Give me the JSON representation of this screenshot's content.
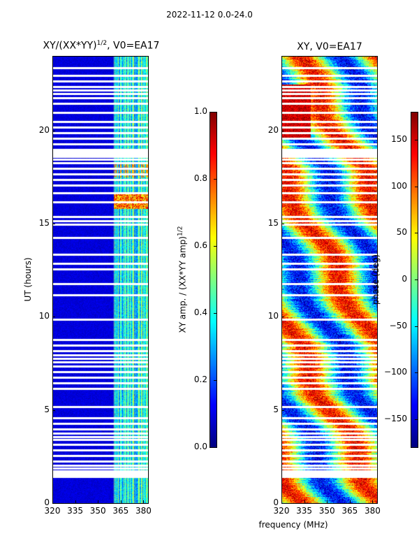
{
  "suptitle": "2022-11-12 0.0-24.0",
  "chart_data": [
    {
      "type": "heatmap",
      "title": "XY/(XX*YY)",
      "title_sup": "1/2",
      "title_suffix": ", V0=EA17",
      "xlabel": "",
      "ylabel": "UT (hours)",
      "xlim": [
        320,
        383
      ],
      "ylim": [
        0,
        24
      ],
      "xticks": [
        320,
        335,
        350,
        365,
        380
      ],
      "yticks": [
        0,
        5,
        10,
        15,
        20
      ],
      "colorbar": {
        "label": "XY amp. / (XX*YY amp)",
        "label_sup": "1/2",
        "range": [
          0.0,
          1.0
        ],
        "ticks": [
          "0.0",
          "0.2",
          "0.4",
          "0.6",
          "0.8",
          "1.0"
        ],
        "colormap": "jet"
      }
    },
    {
      "type": "heatmap",
      "title": "XY, V0=EA17",
      "xlabel": "frequency (MHz)",
      "ylabel": "",
      "xlim": [
        320,
        383
      ],
      "ylim": [
        0,
        24
      ],
      "xticks": [
        320,
        335,
        350,
        365,
        380
      ],
      "yticks": [
        0,
        5,
        10,
        15,
        20
      ],
      "colorbar": {
        "label": "phase (deg)",
        "range": [
          -180,
          180
        ],
        "ticks": [
          "150",
          "100",
          "50",
          "0",
          "−50",
          "−100",
          "−150"
        ],
        "colormap": "jet"
      }
    }
  ],
  "flagged_ut_hours": [
    1.45,
    1.6,
    1.75,
    1.9,
    2.05,
    2.3,
    2.6,
    2.9,
    3.2,
    3.45,
    3.6,
    3.8,
    4.0,
    4.3,
    4.6,
    5.2,
    6.2,
    6.5,
    6.8,
    7.1,
    7.4,
    7.6,
    7.8,
    8.0,
    8.2,
    8.5,
    8.8,
    9.9,
    11.2,
    11.8,
    12.6,
    12.9,
    13.4,
    14.3,
    15.0,
    15.2,
    15.4,
    16.2,
    16.7,
    17.1,
    17.4,
    17.7,
    18.0,
    18.3,
    18.5,
    18.9,
    19.0,
    19.3,
    19.6,
    19.9,
    20.2,
    20.5,
    21.0,
    21.5,
    21.8,
    22.0,
    22.2,
    22.4,
    22.7,
    23.0,
    23.4
  ]
}
